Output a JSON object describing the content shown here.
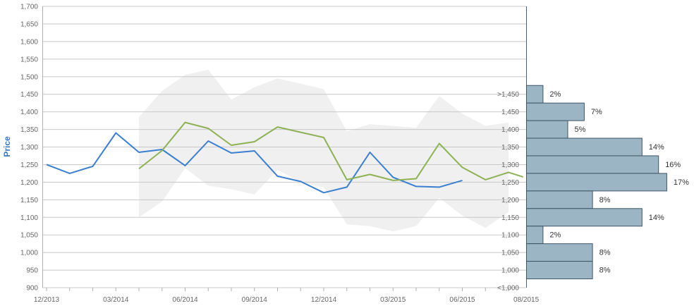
{
  "chart_data": {
    "type": "line",
    "ylabel": "Price",
    "ylim": [
      900,
      1700
    ],
    "y_ticks": [
      "900",
      "950",
      "1,000",
      "1,050",
      "1,100",
      "1,150",
      "1,200",
      "1,250",
      "1,300",
      "1,350",
      "1,400",
      "1,450",
      "1,500",
      "1,550",
      "1,600",
      "1,650",
      "1,700"
    ],
    "x_ticks": [
      "12/2013",
      "03/2014",
      "06/2014",
      "09/2014",
      "12/2014",
      "03/2015",
      "06/2015",
      "08/2015"
    ],
    "grid": true,
    "series": [
      {
        "color": "#3a7fd0",
        "x": [
          "2013-12",
          "2014-01",
          "2014-02",
          "2014-03",
          "2014-04",
          "2014-05",
          "2014-06",
          "2014-07",
          "2014-08",
          "2014-09",
          "2014-10",
          "2014-11",
          "2014-12",
          "2015-01",
          "2015-02",
          "2015-03",
          "2015-04",
          "2015-05",
          "2015-06"
        ],
        "values": [
          1250,
          1225,
          1245,
          1340,
          1285,
          1293,
          1247,
          1317,
          1283,
          1289,
          1217,
          1202,
          1170,
          1186,
          1285,
          1214,
          1188,
          1186,
          1205
        ]
      },
      {
        "color": "#8db255",
        "x": [
          "2014-04",
          "2014-05",
          "2014-06",
          "2014-07",
          "2014-08",
          "2014-09",
          "2014-10",
          "2014-11",
          "2014-12",
          "2015-01",
          "2015-02",
          "2015-03",
          "2015-04",
          "2015-05",
          "2015-06",
          "2015-07",
          "2015-08",
          "2015-08-20"
        ],
        "values": [
          1238,
          1290,
          1370,
          1353,
          1305,
          1315,
          1357,
          1342,
          1327,
          1207,
          1222,
          1205,
          1210,
          1310,
          1242,
          1207,
          1228,
          1215
        ]
      }
    ],
    "band": {
      "color": "#f0f0f0",
      "x": [
        "2014-04",
        "2014-05",
        "2014-06",
        "2014-07",
        "2014-08",
        "2014-09",
        "2014-10",
        "2014-11",
        "2014-12",
        "2015-01",
        "2015-02",
        "2015-03",
        "2015-04",
        "2015-05",
        "2015-06",
        "2015-07",
        "2015-08"
      ],
      "upper": [
        1385,
        1460,
        1505,
        1520,
        1435,
        1470,
        1495,
        1480,
        1465,
        1345,
        1365,
        1360,
        1355,
        1445,
        1395,
        1360,
        1370
      ],
      "lower": [
        1100,
        1145,
        1240,
        1190,
        1180,
        1165,
        1235,
        1200,
        1185,
        1080,
        1075,
        1060,
        1075,
        1155,
        1105,
        1070,
        1115
      ]
    },
    "histogram": {
      "color": "#9cb5c4",
      "bins": [
        {
          "label": ">1,450",
          "value": 2,
          "label_text": "2%"
        },
        {
          "label": "1,450",
          "value": 7,
          "label_text": "7%"
        },
        {
          "label": "1,400",
          "value": 5,
          "label_text": "5%"
        },
        {
          "label": "1,350",
          "value": 14,
          "label_text": "14%"
        },
        {
          "label": "1,300",
          "value": 16,
          "label_text": "16%"
        },
        {
          "label": "1,250",
          "value": 17,
          "label_text": "17%"
        },
        {
          "label": "1,200",
          "value": 8,
          "label_text": "8%"
        },
        {
          "label": "1,150",
          "value": 14,
          "label_text": "14%"
        },
        {
          "label": "1,100",
          "value": 2,
          "label_text": "2%"
        },
        {
          "label": "1,050",
          "value": 8,
          "label_text": "8%"
        },
        {
          "label": "1,000",
          "value": 8,
          "label_text": "8%"
        },
        {
          "label": "<1,000",
          "value": 0,
          "label_text": ""
        }
      ]
    }
  }
}
